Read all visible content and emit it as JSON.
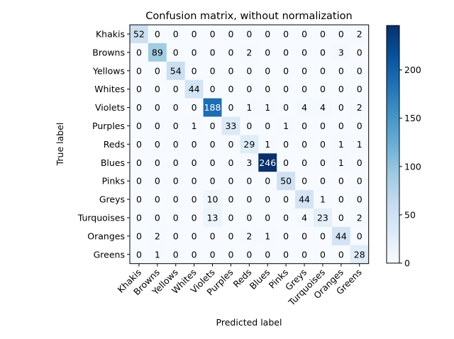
{
  "chart_data": {
    "type": "heatmap",
    "title": "Confusion matrix, without normalization",
    "xlabel": "Predicted label",
    "ylabel": "True label",
    "labels": [
      "Khakis",
      "Browns",
      "Yellows",
      "Whites",
      "Violets",
      "Purples",
      "Reds",
      "Blues",
      "Pinks",
      "Greys",
      "Turquoises",
      "Oranges",
      "Greens"
    ],
    "matrix": [
      [
        52,
        0,
        0,
        0,
        0,
        0,
        0,
        0,
        0,
        0,
        0,
        0,
        2
      ],
      [
        0,
        89,
        0,
        0,
        0,
        0,
        2,
        0,
        0,
        0,
        0,
        3,
        0
      ],
      [
        0,
        0,
        54,
        0,
        0,
        0,
        0,
        0,
        0,
        0,
        0,
        0,
        0
      ],
      [
        0,
        0,
        0,
        44,
        0,
        0,
        0,
        0,
        0,
        0,
        0,
        0,
        0
      ],
      [
        0,
        0,
        0,
        0,
        188,
        0,
        1,
        1,
        0,
        4,
        4,
        0,
        2
      ],
      [
        0,
        0,
        0,
        1,
        0,
        33,
        0,
        0,
        1,
        0,
        0,
        0,
        0
      ],
      [
        0,
        0,
        0,
        0,
        0,
        0,
        29,
        1,
        0,
        0,
        0,
        1,
        1
      ],
      [
        0,
        0,
        0,
        0,
        0,
        0,
        3,
        246,
        0,
        0,
        0,
        1,
        0
      ],
      [
        0,
        0,
        0,
        0,
        0,
        0,
        0,
        0,
        50,
        0,
        0,
        0,
        0
      ],
      [
        0,
        0,
        0,
        0,
        10,
        0,
        0,
        0,
        0,
        44,
        1,
        0,
        0
      ],
      [
        0,
        0,
        0,
        0,
        13,
        0,
        0,
        0,
        0,
        4,
        23,
        0,
        2
      ],
      [
        0,
        2,
        0,
        0,
        0,
        0,
        2,
        1,
        0,
        0,
        0,
        44,
        0
      ],
      [
        0,
        1,
        0,
        0,
        0,
        0,
        0,
        0,
        0,
        0,
        0,
        0,
        28
      ]
    ],
    "colormap": "Blues",
    "vmin": 0,
    "vmax": 246,
    "colorbar_ticks": [
      0,
      50,
      100,
      150,
      200
    ],
    "colors": {
      "low": "#f7fbff",
      "high": "#08306b"
    }
  }
}
